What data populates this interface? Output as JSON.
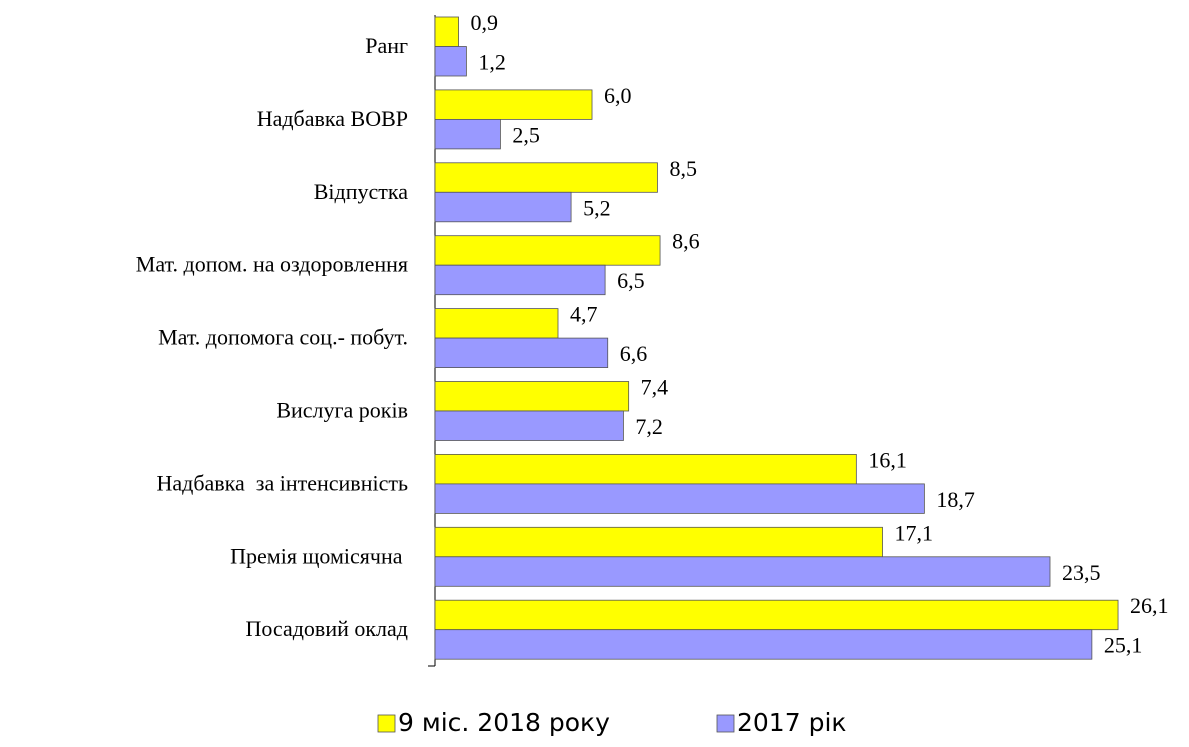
{
  "chart_data": {
    "type": "bar",
    "orientation": "horizontal",
    "categories": [
      "Ранг",
      "Надбавка ВОВР",
      "Відпустка",
      "Мат. допом. на оздоровлення",
      "Мат. допомога соц.- побут.",
      "Вислуга років",
      "Надбавка  за інтенсивність",
      "Премія щомісячна ",
      "Посадовий оклад"
    ],
    "series": [
      {
        "name": "9 міс. 2018 року",
        "color": "#ffff00",
        "values": [
          0.9,
          6.0,
          8.5,
          8.6,
          4.7,
          7.4,
          16.1,
          17.1,
          26.1
        ],
        "value_labels": [
          "0,9",
          "6,0",
          "8,5",
          "8,6",
          "4,7",
          "7,4",
          "16,1",
          "17,1",
          "26,1"
        ]
      },
      {
        "name": "2017 рік",
        "color": "#9999ff",
        "values": [
          1.2,
          2.5,
          5.2,
          6.5,
          6.6,
          7.2,
          18.7,
          23.5,
          25.1
        ],
        "value_labels": [
          "1,2",
          "2,5",
          "5,2",
          "6,5",
          "6,6",
          "7,2",
          "18,7",
          "23,5",
          "25,1"
        ]
      }
    ],
    "xlim": [
      0,
      27
    ],
    "legend": "bottom"
  }
}
